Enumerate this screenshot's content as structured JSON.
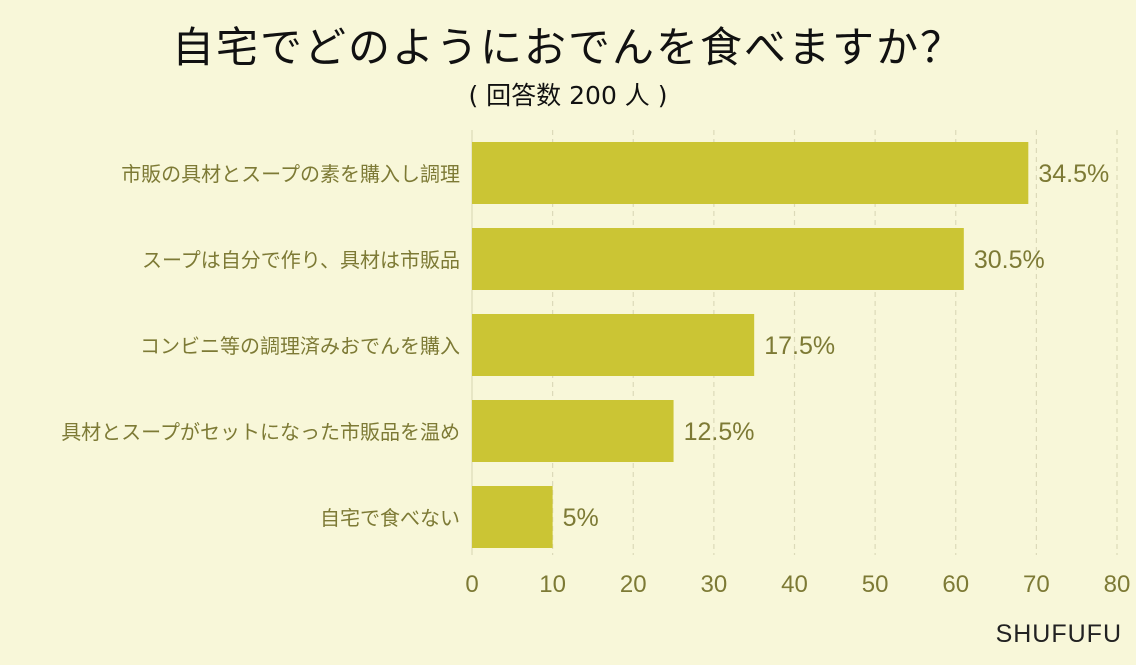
{
  "title": "自宅でどのようにおでんを食べますか？",
  "subtitle": "( 回答数 200 人 )",
  "brand": "SHUFUFU",
  "colors": {
    "background": "#f8f7d9",
    "bar": "#cbc534",
    "label": "#7d7a35",
    "grid": "#dcdab8"
  },
  "chart_data": {
    "type": "bar",
    "orientation": "horizontal",
    "categories": [
      "市販の具材とスープの素を購入し調理",
      "スープは自分で作り、具材は市販品",
      "コンビニ等の調理済みおでんを購入",
      "具材とスープがセットになった市販品を温め",
      "自宅で食べない"
    ],
    "values": [
      69,
      61,
      35,
      25,
      10
    ],
    "data_labels": [
      "34.5%",
      "30.5%",
      "17.5%",
      "12.5%",
      "5%"
    ],
    "xlim": [
      0,
      80
    ],
    "xticks": [
      0,
      10,
      20,
      30,
      40,
      50,
      60,
      70,
      80
    ],
    "grid": "vertical dashed",
    "legend": "none"
  }
}
